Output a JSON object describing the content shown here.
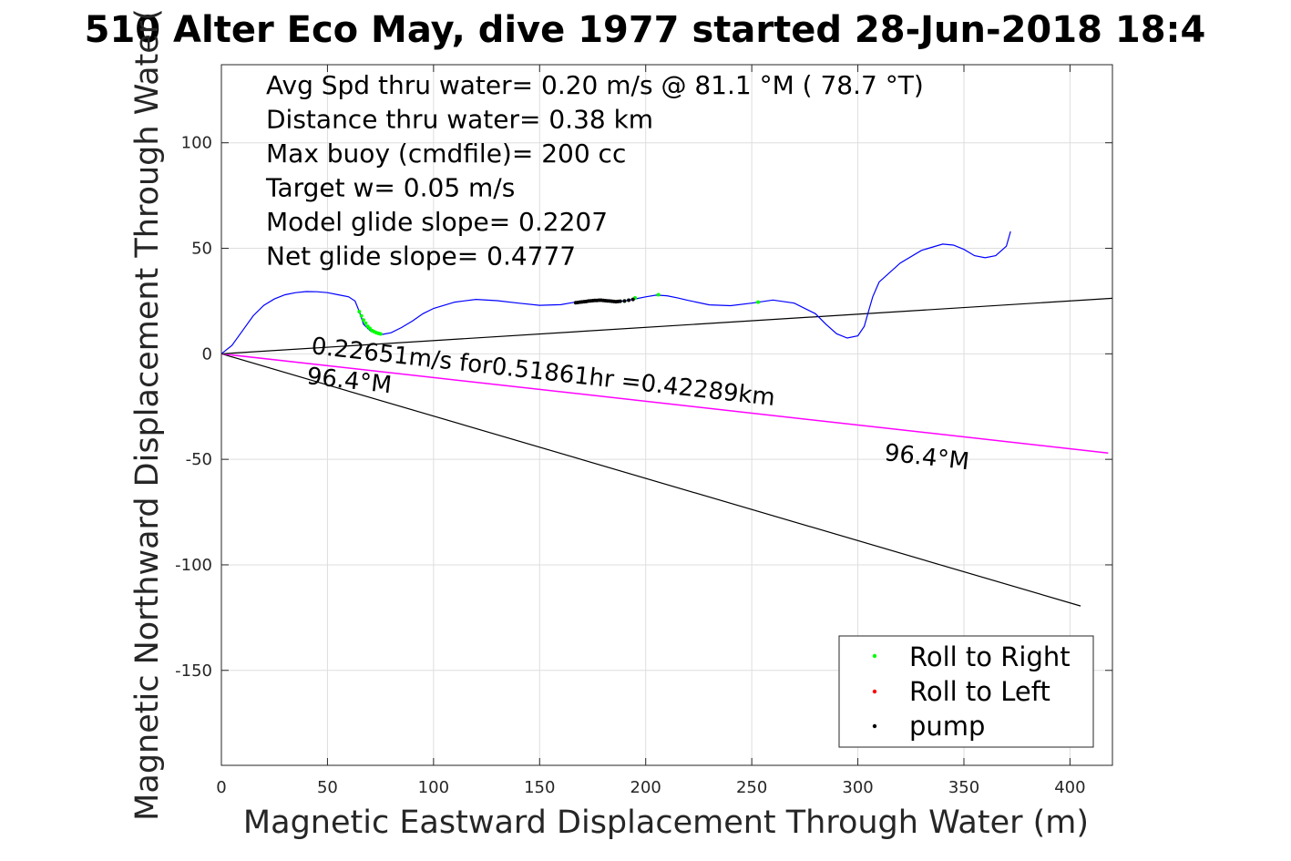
{
  "chart_data": {
    "type": "line",
    "title": "510 Alter Eco May, dive 1977 started 28-Jun-2018 18:4",
    "xlabel": "Magnetic Eastward Displacement Through Water (m)",
    "ylabel": "Magnetic Northward Displacement Through Water(",
    "xlim": [
      0,
      420
    ],
    "ylim": [
      -195,
      137
    ],
    "xticks": [
      0,
      50,
      100,
      150,
      200,
      250,
      300,
      350,
      400
    ],
    "yticks": [
      -150,
      -100,
      -50,
      0,
      50,
      100
    ],
    "grid": true,
    "legend_position": "bottom-right",
    "annotations": [
      "Avg Spd thru water=  0.20 m/s @  81.1 °M ( 78.7 °T)",
      "Distance thru water=  0.38 km",
      "Max buoy (cmdfile)= 200 cc",
      "Target w= 0.05 m/s",
      "Model glide slope= 0.2207",
      "Net glide slope= 0.4777"
    ],
    "current_label": "0.22651m/s for0.51861hr =0.42289km",
    "heading_label_1": "96.4°M",
    "heading_label_2": "96.4°M",
    "series": [
      {
        "name": "track",
        "color": "#0000ff",
        "x": [
          0,
          5,
          10,
          15,
          20,
          25,
          30,
          35,
          40,
          45,
          50,
          55,
          60,
          63,
          65,
          67,
          70,
          73,
          76,
          80,
          85,
          90,
          95,
          100,
          110,
          120,
          130,
          140,
          150,
          160,
          165,
          170,
          175,
          180,
          185,
          190,
          195,
          200,
          205,
          210,
          215,
          220,
          230,
          240,
          250,
          260,
          270,
          280,
          285,
          290,
          295,
          300,
          303,
          305,
          307,
          310,
          320,
          330,
          340,
          345,
          350,
          355,
          360,
          365,
          370,
          372
        ],
        "y": [
          0,
          4,
          11,
          18,
          23,
          26,
          28,
          29,
          29.5,
          29.4,
          29,
          28,
          27,
          25,
          20,
          14,
          11,
          9.5,
          9.2,
          10,
          12.5,
          15.5,
          19,
          21.5,
          24.5,
          25.8,
          25.2,
          24,
          23,
          23.3,
          24.2,
          25,
          25.4,
          25.2,
          24.8,
          25,
          26,
          27,
          27.8,
          27.5,
          26.5,
          25.3,
          23.2,
          22.8,
          24,
          25.5,
          24,
          19,
          14,
          9.5,
          7.5,
          8.5,
          13,
          20,
          27,
          34,
          43,
          49,
          52,
          51.5,
          49.5,
          46.5,
          45.5,
          46.5,
          51,
          58
        ]
      },
      {
        "name": "Roll to Right",
        "color": "#00ff00",
        "x": [
          65,
          66,
          67,
          68,
          69,
          70,
          71,
          72,
          73,
          74,
          75,
          190,
          195,
          206,
          253
        ],
        "y": [
          20,
          18,
          16,
          14.5,
          13,
          12,
          11,
          10.5,
          10,
          9.7,
          9.4,
          25,
          26.5,
          28,
          24.5
        ]
      },
      {
        "name": "Roll to Left",
        "color": "#ff0000",
        "x": [],
        "y": []
      },
      {
        "name": "pump",
        "color": "#000000",
        "x": [
          167,
          168,
          169,
          170,
          171,
          172,
          173,
          174,
          175,
          176,
          177,
          178,
          179,
          180,
          181,
          182,
          183,
          184,
          185,
          186,
          187,
          188,
          190,
          192,
          194
        ],
        "y": [
          24.2,
          24.3,
          24.5,
          24.6,
          24.7,
          24.8,
          25,
          25.1,
          25.2,
          25.3,
          25.3,
          25.4,
          25.4,
          25.3,
          25.2,
          25.1,
          25,
          24.9,
          24.8,
          24.7,
          24.8,
          24.9,
          25,
          25.4,
          25.8
        ]
      }
    ],
    "reference_lines": [
      {
        "x": [
          0,
          420
        ],
        "y": [
          0,
          26.3
        ],
        "color": "#000000"
      },
      {
        "x": [
          0,
          405
        ],
        "y": [
          0,
          -119.5
        ],
        "color": "#000000"
      },
      {
        "x": [
          0,
          418
        ],
        "y": [
          0,
          -47
        ],
        "color": "#ff00ff"
      }
    ]
  },
  "legend": {
    "items": [
      {
        "label": "Roll to Right",
        "color": "#00ff00"
      },
      {
        "label": "Roll to Left",
        "color": "#ff0000"
      },
      {
        "label": "pump",
        "color": "#000000"
      }
    ]
  }
}
